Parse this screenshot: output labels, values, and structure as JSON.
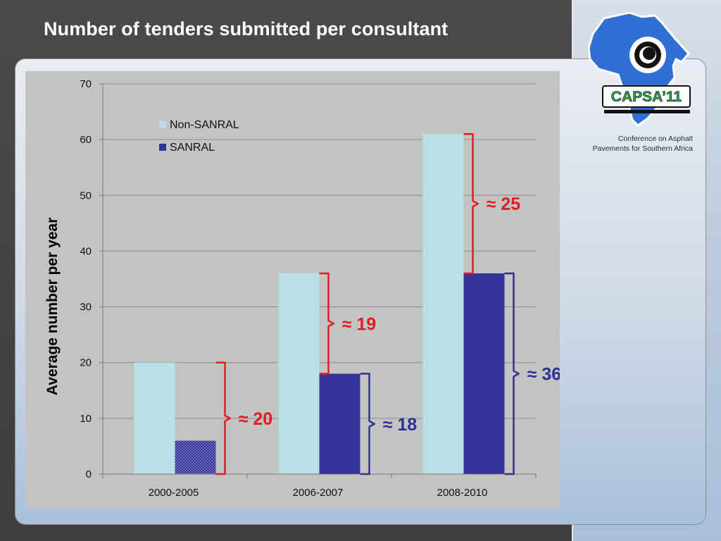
{
  "slide": {
    "title": "Number of tenders submitted per consultant",
    "logo_text": "CAPSA’11",
    "logo_caption_line1": "Conference on Asphalt",
    "logo_caption_line2": "Pavements for Southern Africa"
  },
  "colors": {
    "non_sanral": "#b9e0e4",
    "sanral": "#333399",
    "annotation_red": "#e31b23",
    "annotation_blue": "#2e3192",
    "logo_blue": "#2f6fd6"
  },
  "chart_data": {
    "type": "bar",
    "title": "",
    "xlabel": "",
    "ylabel": "Average number per year",
    "ylim": [
      0,
      70
    ],
    "yticks": [
      0,
      10,
      20,
      30,
      40,
      50,
      60,
      70
    ],
    "grid": true,
    "legend_position": "top-left",
    "categories": [
      "2000-2005",
      "2006-2007",
      "2008-2010"
    ],
    "series": [
      {
        "name": "Non-SANRAL",
        "values": [
          20,
          36,
          61
        ]
      },
      {
        "name": "SANRAL",
        "values": [
          6,
          18,
          36
        ]
      }
    ],
    "annotations": [
      {
        "label": "≈ 20",
        "category": "2000-2005",
        "from": 0,
        "to": 20,
        "color": "red"
      },
      {
        "label": "≈ 19",
        "category": "2006-2007",
        "from": 18,
        "to": 36,
        "color": "red"
      },
      {
        "label": "≈ 18",
        "category": "2006-2007",
        "from": 0,
        "to": 18,
        "color": "blue"
      },
      {
        "label": "≈ 25",
        "category": "2008-2010",
        "from": 36,
        "to": 61,
        "color": "red"
      },
      {
        "label": "≈ 36",
        "category": "2008-2010",
        "from": 0,
        "to": 36,
        "color": "blue"
      }
    ]
  }
}
